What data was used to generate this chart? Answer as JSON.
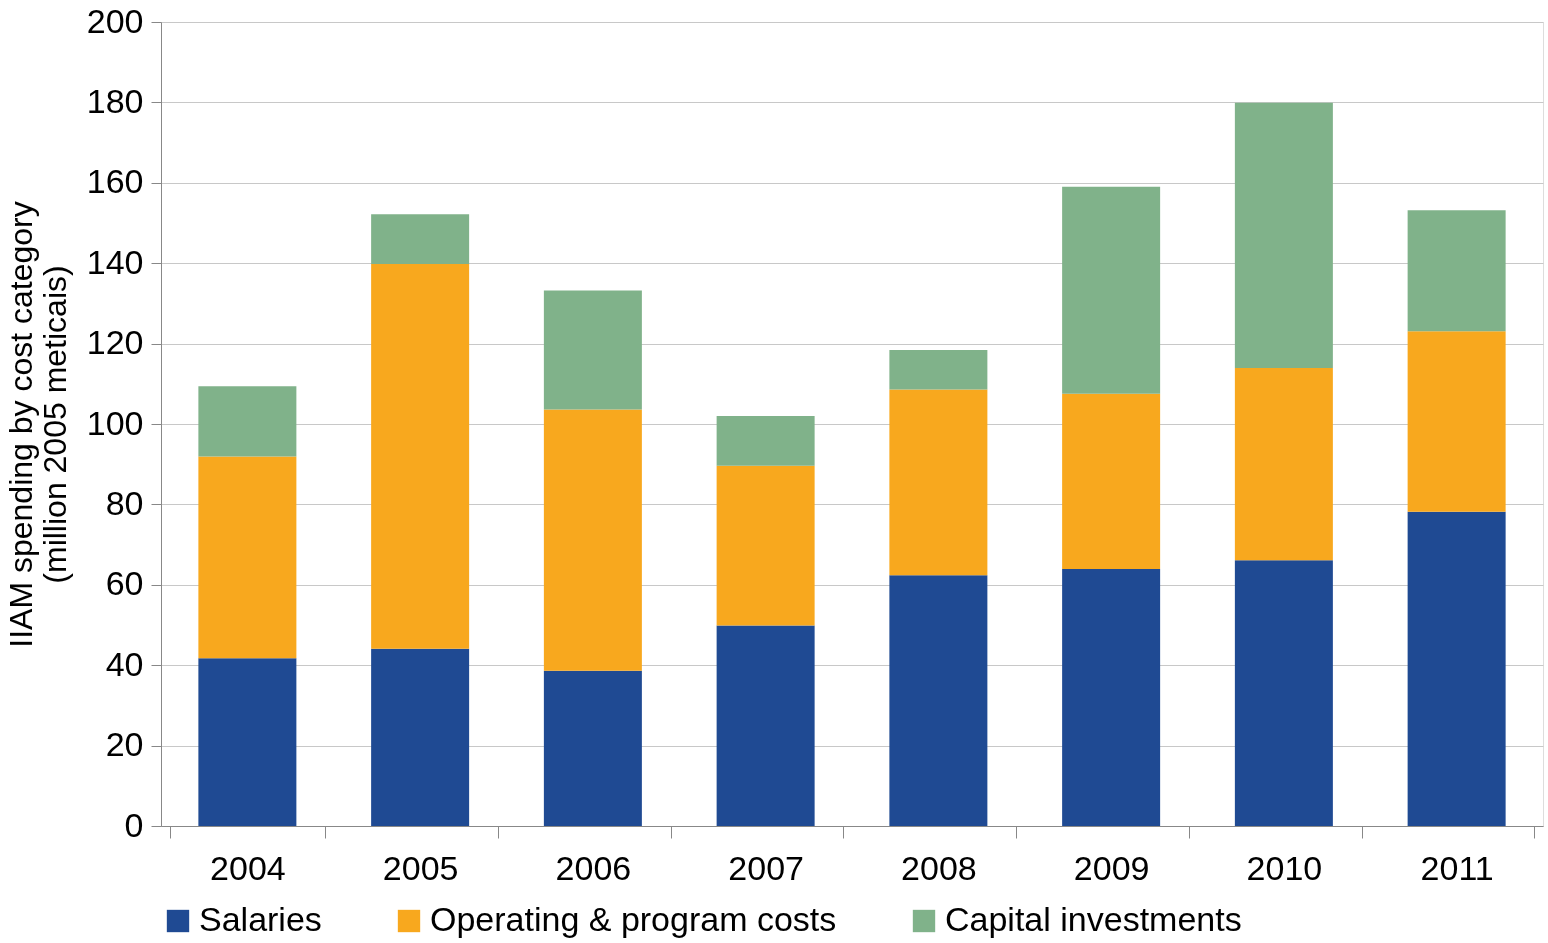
{
  "chart_data": {
    "type": "bar",
    "stacked": true,
    "ylabel": "IIAM spending by cost category\n(million 2005  meticais)",
    "categories": [
      "2004",
      "2005",
      "2006",
      "2007",
      "2008",
      "2009",
      "2010",
      "2011"
    ],
    "series": [
      {
        "name": "Salaries",
        "color": "#1f4a93",
        "values": [
          41.7,
          44.1,
          38.6,
          49.9,
          62.4,
          63.9,
          66.1,
          78.2
        ]
      },
      {
        "name": "Operating & program costs",
        "color": "#f8a81e",
        "values": [
          50.2,
          95.7,
          65.0,
          39.7,
          46.2,
          43.6,
          47.8,
          44.9
        ]
      },
      {
        "name": "Capital investments",
        "color": "#80b28a",
        "values": [
          17.5,
          12.4,
          29.6,
          12.4,
          9.8,
          51.5,
          66.0,
          30.1
        ]
      }
    ],
    "ylim": [
      0,
      200
    ],
    "yticks": [
      0,
      20,
      40,
      60,
      80,
      100,
      120,
      140,
      160,
      180,
      200
    ],
    "grid": "y",
    "legend": "bottom"
  }
}
